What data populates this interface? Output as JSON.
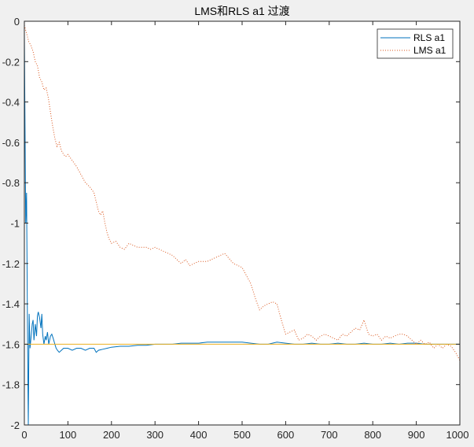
{
  "chart_data": {
    "type": "line",
    "title": "LMS和RLS a1 过渡",
    "xlabel": "",
    "ylabel": "",
    "xlim": [
      0,
      1000
    ],
    "ylim": [
      -2,
      0
    ],
    "xticks": [
      0,
      100,
      200,
      300,
      400,
      500,
      600,
      700,
      800,
      900,
      1000
    ],
    "yticks": [
      0,
      -0.2,
      -0.4,
      -0.6,
      -0.8,
      -1,
      -1.2,
      -1.4,
      -1.6,
      -1.8,
      -2
    ],
    "xtick_labels": [
      "0",
      "100",
      "200",
      "300",
      "400",
      "500",
      "600",
      "700",
      "800",
      "900",
      "1000"
    ],
    "ytick_labels": [
      "0",
      "-0.2",
      "-0.4",
      "-0.6",
      "-0.8",
      "-1",
      "-1.2",
      "-1.4",
      "-1.6",
      "-1.8",
      "-2"
    ],
    "grid": false,
    "legend_position": "top-right",
    "series": [
      {
        "name": "RLS a1",
        "style": "solid",
        "color": "#0072bd",
        "x": [
          0,
          1,
          3,
          5,
          7,
          9,
          11,
          13,
          16,
          18,
          20,
          22,
          25,
          28,
          30,
          32,
          35,
          38,
          40,
          42,
          45,
          48,
          50,
          53,
          56,
          60,
          63,
          66,
          70,
          73,
          76,
          80,
          85,
          90,
          100,
          110,
          120,
          130,
          140,
          150,
          160,
          165,
          170,
          180,
          190,
          200,
          220,
          240,
          260,
          280,
          300,
          320,
          340,
          360,
          380,
          400,
          420,
          440,
          460,
          480,
          500,
          520,
          540,
          560,
          580,
          600,
          620,
          640,
          660,
          680,
          700,
          720,
          740,
          760,
          780,
          800,
          820,
          840,
          860,
          880,
          900,
          920,
          940,
          960,
          980,
          1000
        ],
        "y": [
          -0.05,
          -0.4,
          -1.0,
          -0.85,
          -1.5,
          -2.0,
          -1.45,
          -1.62,
          -1.55,
          -1.5,
          -1.48,
          -1.58,
          -1.5,
          -1.56,
          -1.46,
          -1.44,
          -1.47,
          -1.52,
          -1.45,
          -1.55,
          -1.6,
          -1.56,
          -1.58,
          -1.54,
          -1.6,
          -1.56,
          -1.55,
          -1.57,
          -1.6,
          -1.62,
          -1.63,
          -1.64,
          -1.63,
          -1.62,
          -1.62,
          -1.63,
          -1.62,
          -1.62,
          -1.63,
          -1.62,
          -1.62,
          -1.64,
          -1.63,
          -1.625,
          -1.62,
          -1.615,
          -1.61,
          -1.61,
          -1.605,
          -1.605,
          -1.6,
          -1.6,
          -1.6,
          -1.595,
          -1.595,
          -1.595,
          -1.59,
          -1.59,
          -1.59,
          -1.59,
          -1.59,
          -1.595,
          -1.6,
          -1.6,
          -1.59,
          -1.595,
          -1.6,
          -1.6,
          -1.595,
          -1.6,
          -1.6,
          -1.595,
          -1.6,
          -1.6,
          -1.595,
          -1.6,
          -1.6,
          -1.595,
          -1.6,
          -1.595,
          -1.595,
          -1.6,
          -1.6,
          -1.6,
          -1.6,
          -1.6
        ]
      },
      {
        "name": "LMS a1",
        "style": "dotted",
        "color": "#d95319",
        "x": [
          0,
          5,
          10,
          15,
          20,
          25,
          30,
          35,
          40,
          45,
          50,
          55,
          60,
          65,
          70,
          75,
          80,
          85,
          90,
          95,
          100,
          110,
          120,
          130,
          140,
          150,
          160,
          170,
          175,
          180,
          185,
          190,
          195,
          200,
          210,
          220,
          230,
          240,
          250,
          260,
          270,
          280,
          290,
          300,
          320,
          340,
          360,
          370,
          380,
          400,
          420,
          440,
          460,
          480,
          500,
          510,
          520,
          530,
          540,
          550,
          560,
          570,
          580,
          590,
          600,
          610,
          620,
          630,
          640,
          650,
          660,
          670,
          680,
          690,
          700,
          710,
          720,
          730,
          740,
          750,
          760,
          770,
          780,
          790,
          800,
          810,
          820,
          830,
          840,
          850,
          860,
          870,
          880,
          890,
          900,
          910,
          920,
          930,
          940,
          950,
          960,
          970,
          980,
          990,
          1000
        ],
        "y": [
          -0.02,
          -0.06,
          -0.1,
          -0.12,
          -0.15,
          -0.2,
          -0.22,
          -0.28,
          -0.3,
          -0.34,
          -0.33,
          -0.38,
          -0.45,
          -0.52,
          -0.58,
          -0.62,
          -0.6,
          -0.64,
          -0.66,
          -0.67,
          -0.66,
          -0.69,
          -0.72,
          -0.76,
          -0.8,
          -0.82,
          -0.85,
          -0.94,
          -0.96,
          -0.94,
          -1.0,
          -1.05,
          -1.08,
          -1.1,
          -1.09,
          -1.12,
          -1.13,
          -1.1,
          -1.11,
          -1.12,
          -1.12,
          -1.12,
          -1.13,
          -1.12,
          -1.14,
          -1.16,
          -1.2,
          -1.18,
          -1.21,
          -1.19,
          -1.19,
          -1.17,
          -1.15,
          -1.2,
          -1.22,
          -1.26,
          -1.3,
          -1.37,
          -1.43,
          -1.41,
          -1.4,
          -1.39,
          -1.4,
          -1.48,
          -1.55,
          -1.54,
          -1.53,
          -1.58,
          -1.57,
          -1.55,
          -1.56,
          -1.58,
          -1.56,
          -1.55,
          -1.56,
          -1.57,
          -1.58,
          -1.55,
          -1.56,
          -1.54,
          -1.52,
          -1.53,
          -1.48,
          -1.55,
          -1.56,
          -1.55,
          -1.58,
          -1.56,
          -1.57,
          -1.56,
          -1.55,
          -1.55,
          -1.56,
          -1.58,
          -1.6,
          -1.58,
          -1.6,
          -1.59,
          -1.62,
          -1.6,
          -1.62,
          -1.6,
          -1.61,
          -1.64,
          -1.68
        ]
      },
      {
        "name": "",
        "style": "solid",
        "color": "#edb120",
        "x": [
          0,
          1000
        ],
        "y": [
          -1.6,
          -1.6
        ]
      }
    ]
  }
}
